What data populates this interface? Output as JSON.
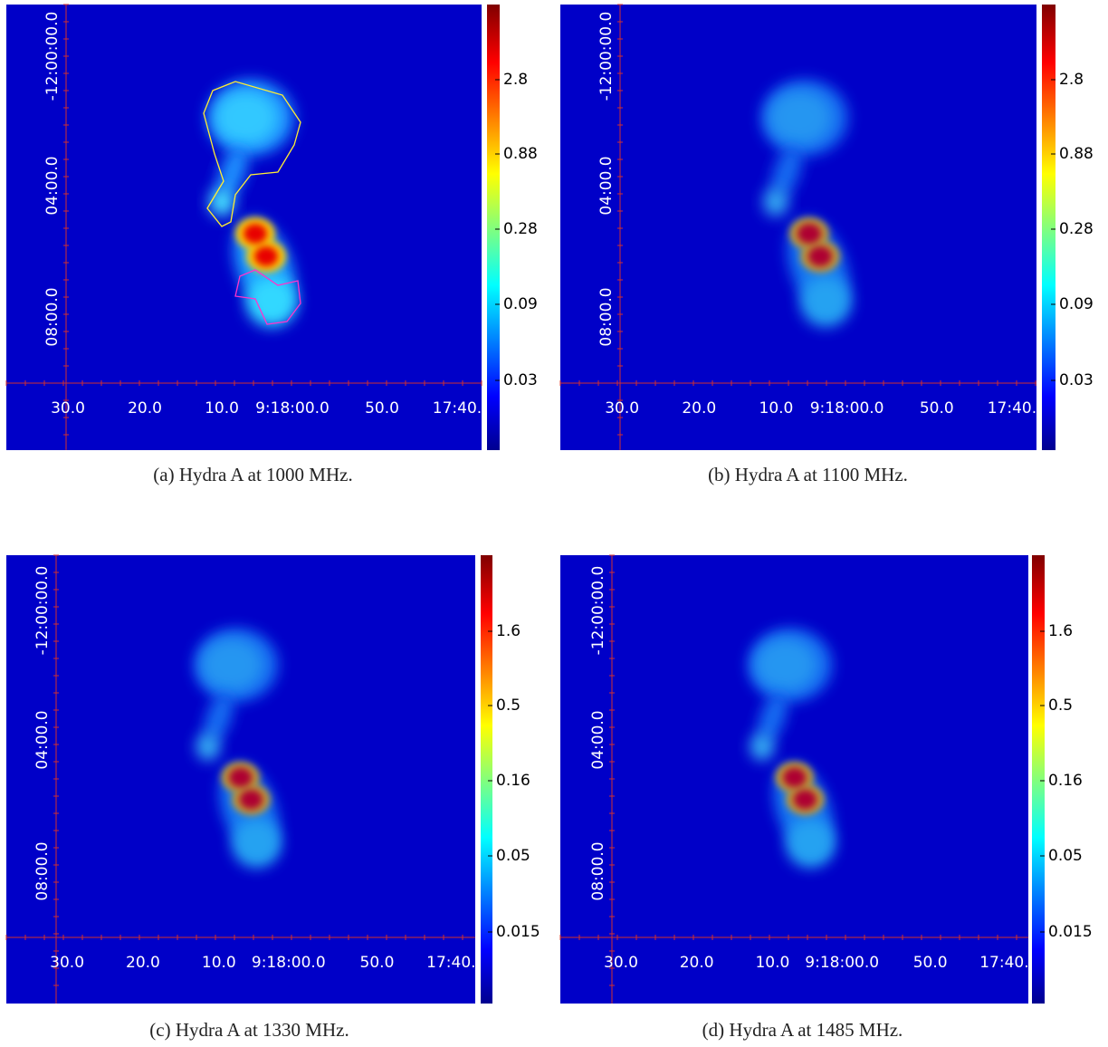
{
  "panels": [
    {
      "caption": "(a) Hydra A at 1000 MHz.",
      "x_labels": [
        "30.0",
        "20.0",
        "10.0",
        "9:18:00.0",
        "50.0",
        "17:40."
      ],
      "y_labels": [
        "-12:00:00.0",
        "04:00.0",
        "08:00.0"
      ],
      "colorbar_labels": [
        "2.8",
        "0.88",
        "0.28",
        "0.09",
        "0.03"
      ]
    },
    {
      "caption": "(b) Hydra A at 1100 MHz.",
      "x_labels": [
        "30.0",
        "20.0",
        "10.0",
        "9:18:00.0",
        "50.0",
        "17:40."
      ],
      "y_labels": [
        "-12:00:00.0",
        "04:00.0",
        "08:00.0"
      ],
      "colorbar_labels": [
        "2.8",
        "0.88",
        "0.28",
        "0.09",
        "0.03"
      ]
    },
    {
      "caption": "(c) Hydra A at 1330 MHz.",
      "x_labels": [
        "30.0",
        "20.0",
        "10.0",
        "9:18:00.0",
        "50.0",
        "17:40."
      ],
      "y_labels": [
        "-12:00:00.0",
        "04:00.0",
        "08:00.0"
      ],
      "colorbar_labels": [
        "1.6",
        "0.5",
        "0.16",
        "0.05",
        "0.015"
      ]
    },
    {
      "caption": "(d) Hydra A at 1485 MHz.",
      "x_labels": [
        "30.0",
        "20.0",
        "10.0",
        "9:18:00.0",
        "50.0",
        "17:40."
      ],
      "y_labels": [
        "-12:00:00.0",
        "04:00.0",
        "08:00.0"
      ],
      "colorbar_labels": [
        "1.6",
        "0.5",
        "0.16",
        "0.05",
        "0.015"
      ]
    }
  ]
}
